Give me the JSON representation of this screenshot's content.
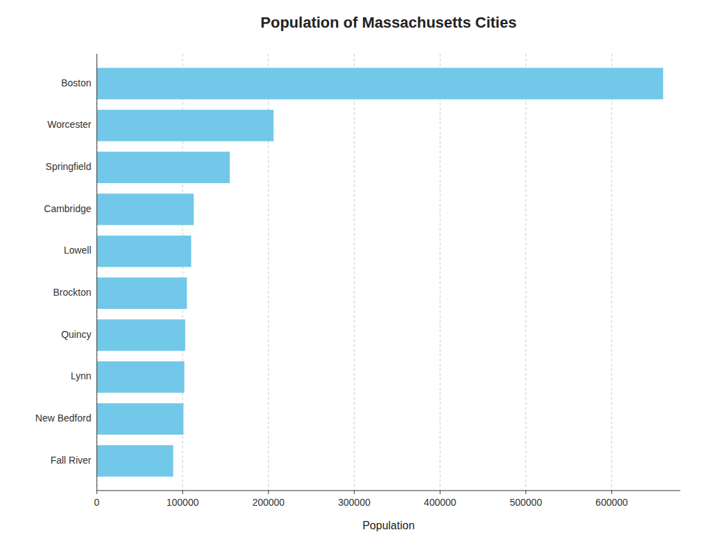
{
  "chart_data": {
    "type": "bar",
    "orientation": "horizontal",
    "title": "Population of Massachusetts Cities",
    "xlabel": "Population",
    "categories": [
      "Fall River",
      "New Bedford",
      "Lynn",
      "Quincy",
      "Brockton",
      "Lowell",
      "Cambridge",
      "Springfield",
      "Worcester",
      "Boston"
    ],
    "values": [
      89000,
      101000,
      102000,
      103000,
      105000,
      110000,
      113000,
      155000,
      206000,
      660000
    ],
    "color": "#72C8E8",
    "xlim": [
      0,
      680000
    ],
    "xticks": [
      0,
      100000,
      200000,
      300000,
      400000,
      500000,
      600000
    ],
    "grid": true
  }
}
